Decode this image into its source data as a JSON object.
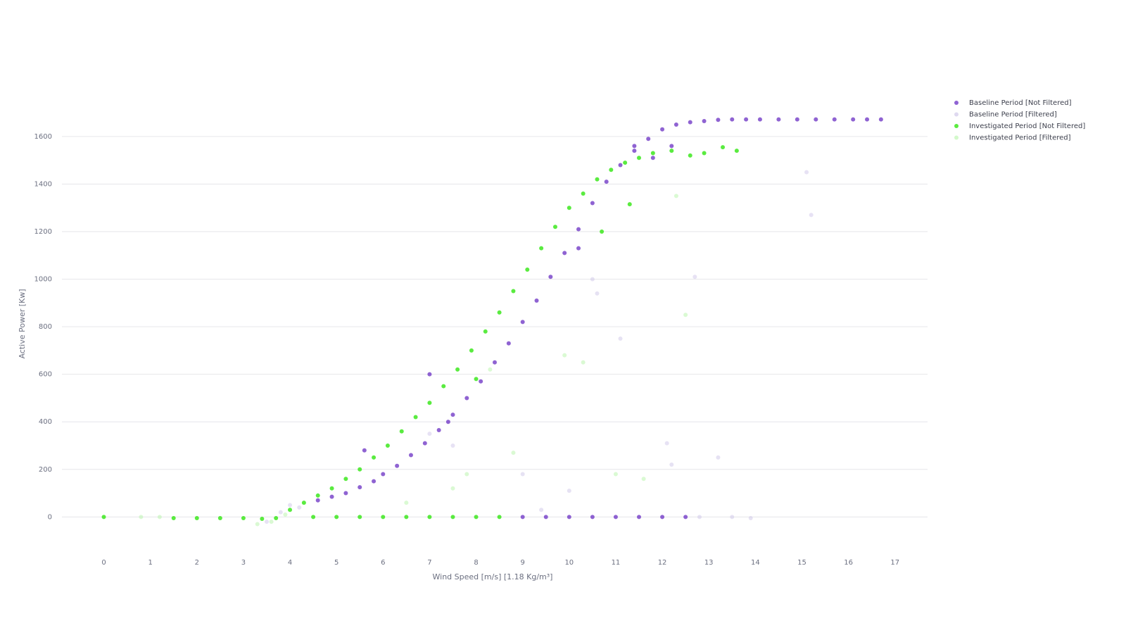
{
  "chart_data": {
    "type": "scatter",
    "xlabel": "Wind Speed [m/s] [1.18 Kg/m³]",
    "ylabel": "Active Power [Kw]",
    "xlim": [
      -0.9,
      17.7
    ],
    "ylim": [
      -150,
      1730
    ],
    "xticks": [
      0,
      1,
      2,
      3,
      4,
      5,
      6,
      7,
      8,
      9,
      10,
      11,
      12,
      13,
      14,
      15,
      16,
      17
    ],
    "yticks": [
      0,
      200,
      400,
      600,
      800,
      1000,
      1200,
      1400,
      1600
    ],
    "grid": true,
    "legend": "top-right",
    "series": [
      {
        "name": "Baseline Period [Not Filtered]",
        "color": "#6a2fc4",
        "opacity": 0.75,
        "x": [
          4.6,
          4.9,
          5.2,
          5.5,
          5.8,
          6.0,
          6.3,
          6.6,
          6.9,
          7.2,
          7.5,
          7.8,
          8.1,
          8.4,
          8.7,
          9.0,
          9.3,
          9.6,
          9.9,
          10.2,
          10.5,
          10.8,
          11.1,
          11.4,
          11.7,
          12.0,
          12.3,
          12.6,
          12.9,
          13.2,
          13.5,
          13.8,
          14.1,
          14.5,
          14.9,
          15.3,
          15.7,
          16.1,
          16.4,
          16.7,
          9.0,
          9.5,
          10.0,
          10.5,
          11.0,
          11.5,
          12.0,
          12.5,
          5.6,
          7.0,
          7.4,
          10.2,
          11.8,
          12.2,
          11.4
        ],
        "y": [
          70,
          85,
          100,
          125,
          150,
          180,
          215,
          260,
          310,
          365,
          430,
          500,
          570,
          650,
          730,
          820,
          910,
          1010,
          1110,
          1210,
          1320,
          1410,
          1480,
          1540,
          1590,
          1630,
          1650,
          1660,
          1665,
          1670,
          1672,
          1672,
          1672,
          1672,
          1672,
          1672,
          1672,
          1672,
          1672,
          1672,
          0,
          0,
          0,
          0,
          0,
          0,
          0,
          0,
          280,
          600,
          400,
          1130,
          1510,
          1560,
          1560
        ]
      },
      {
        "name": "Baseline Period [Filtered]",
        "color": "#c9bfe6",
        "opacity": 0.45,
        "x": [
          3.5,
          3.8,
          4.0,
          4.2,
          9.4,
          10.0,
          10.5,
          10.6,
          11.1,
          12.2,
          12.1,
          12.7,
          13.2,
          15.1,
          15.2,
          13.9,
          13.5,
          12.8,
          9.0,
          7.5,
          7.0
        ],
        "y": [
          -20,
          20,
          50,
          40,
          30,
          110,
          1000,
          940,
          750,
          220,
          310,
          1010,
          250,
          1450,
          1270,
          -5,
          0,
          0,
          180,
          300,
          350
        ]
      },
      {
        "name": "Investigated Period [Not Filtered]",
        "color": "#3ee81f",
        "opacity": 0.85,
        "x": [
          0,
          1.5,
          2,
          2.5,
          3,
          3.4,
          3.7,
          4.0,
          4.3,
          4.6,
          4.9,
          5.2,
          5.5,
          5.8,
          6.1,
          6.4,
          6.7,
          7.0,
          7.3,
          7.6,
          7.9,
          8.2,
          8.5,
          8.8,
          9.1,
          9.4,
          9.7,
          10.0,
          10.3,
          10.6,
          10.9,
          11.2,
          11.5,
          11.8,
          12.2,
          12.6,
          12.9,
          13.3,
          13.6,
          4.5,
          5,
          5.5,
          6,
          6.5,
          7,
          7.5,
          8,
          8.5,
          10.7,
          11.3,
          8.0
        ],
        "y": [
          0,
          -5,
          -5,
          -5,
          -5,
          -8,
          -5,
          30,
          60,
          90,
          120,
          160,
          200,
          250,
          300,
          360,
          420,
          480,
          550,
          620,
          700,
          780,
          860,
          950,
          1040,
          1130,
          1220,
          1300,
          1360,
          1420,
          1460,
          1490,
          1510,
          1530,
          1540,
          1520,
          1530,
          1555,
          1540,
          0,
          0,
          0,
          0,
          0,
          0,
          0,
          0,
          0,
          1200,
          1315,
          580
        ]
      },
      {
        "name": "Investigated Period [Filtered]",
        "color": "#b6f5a8",
        "opacity": 0.5,
        "x": [
          0.8,
          1.2,
          3.3,
          3.6,
          3.9,
          7.8,
          8.3,
          9.9,
          10.3,
          11.0,
          11.6,
          12.3,
          12.5,
          8.8,
          7.5,
          6.5
        ],
        "y": [
          0,
          0,
          -30,
          -20,
          10,
          180,
          620,
          680,
          650,
          180,
          160,
          1350,
          850,
          270,
          120,
          60
        ]
      }
    ]
  }
}
